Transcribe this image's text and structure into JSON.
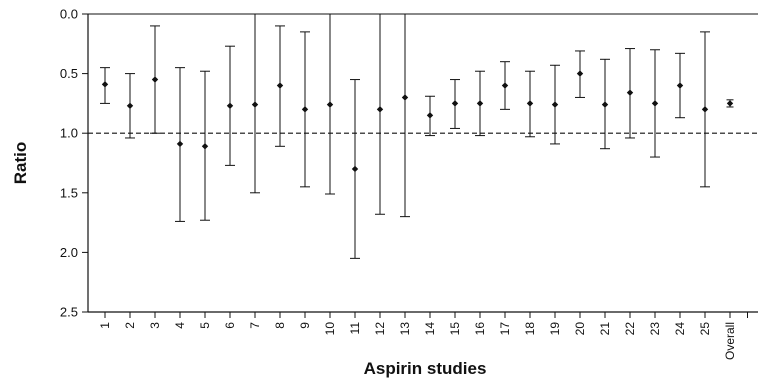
{
  "chart_data": {
    "type": "scatter",
    "subtype": "error-bar",
    "xlabel": "Aspirin studies",
    "ylabel": "Ratio",
    "y_axis_inverted": true,
    "ylim": [
      0.0,
      2.5
    ],
    "yticks": [
      "0.0",
      "0.5",
      "1.0",
      "1.5",
      "2.0",
      "2.5"
    ],
    "reference_line": {
      "y": 1.0,
      "style": "dashed"
    },
    "grid": false,
    "legend": "none",
    "categories": [
      "1",
      "2",
      "3",
      "4",
      "5",
      "6",
      "7",
      "8",
      "9",
      "10",
      "11",
      "12",
      "13",
      "14",
      "15",
      "16",
      "17",
      "18",
      "19",
      "20",
      "21",
      "22",
      "23",
      "24",
      "25",
      "Overall"
    ],
    "points": [
      {
        "label": "1",
        "estimate": 0.59,
        "lower": 0.45,
        "upper": 0.75
      },
      {
        "label": "2",
        "estimate": 0.77,
        "lower": 0.5,
        "upper": 1.04
      },
      {
        "label": "3",
        "estimate": 0.55,
        "lower": 0.1,
        "upper": 1.0
      },
      {
        "label": "4",
        "estimate": 1.09,
        "lower": 0.45,
        "upper": 1.74
      },
      {
        "label": "5",
        "estimate": 1.11,
        "lower": 0.48,
        "upper": 1.73
      },
      {
        "label": "6",
        "estimate": 0.77,
        "lower": 0.27,
        "upper": 1.27
      },
      {
        "label": "7",
        "estimate": 0.76,
        "lower": 0.0,
        "upper": 1.5
      },
      {
        "label": "8",
        "estimate": 0.6,
        "lower": 0.1,
        "upper": 1.11
      },
      {
        "label": "9",
        "estimate": 0.8,
        "lower": 0.15,
        "upper": 1.45
      },
      {
        "label": "10",
        "estimate": 0.76,
        "lower": 0.0,
        "upper": 1.51
      },
      {
        "label": "11",
        "estimate": 1.3,
        "lower": 0.55,
        "upper": 2.05
      },
      {
        "label": "12",
        "estimate": 0.8,
        "lower": 0.0,
        "upper": 1.68
      },
      {
        "label": "13",
        "estimate": 0.7,
        "lower": 0.0,
        "upper": 1.7
      },
      {
        "label": "14",
        "estimate": 0.85,
        "lower": 0.69,
        "upper": 1.02
      },
      {
        "label": "15",
        "estimate": 0.75,
        "lower": 0.55,
        "upper": 0.96
      },
      {
        "label": "16",
        "estimate": 0.75,
        "lower": 0.48,
        "upper": 1.02
      },
      {
        "label": "17",
        "estimate": 0.6,
        "lower": 0.4,
        "upper": 0.8
      },
      {
        "label": "18",
        "estimate": 0.75,
        "lower": 0.48,
        "upper": 1.03
      },
      {
        "label": "19",
        "estimate": 0.76,
        "lower": 0.43,
        "upper": 1.09
      },
      {
        "label": "20",
        "estimate": 0.5,
        "lower": 0.31,
        "upper": 0.7
      },
      {
        "label": "21",
        "estimate": 0.76,
        "lower": 0.38,
        "upper": 1.13
      },
      {
        "label": "22",
        "estimate": 0.66,
        "lower": 0.29,
        "upper": 1.04
      },
      {
        "label": "23",
        "estimate": 0.75,
        "lower": 0.3,
        "upper": 1.2
      },
      {
        "label": "24",
        "estimate": 0.6,
        "lower": 0.33,
        "upper": 0.87
      },
      {
        "label": "25",
        "estimate": 0.8,
        "lower": 0.15,
        "upper": 1.45
      },
      {
        "label": "Overall",
        "estimate": 0.75,
        "lower": 0.72,
        "upper": 0.78
      }
    ]
  }
}
